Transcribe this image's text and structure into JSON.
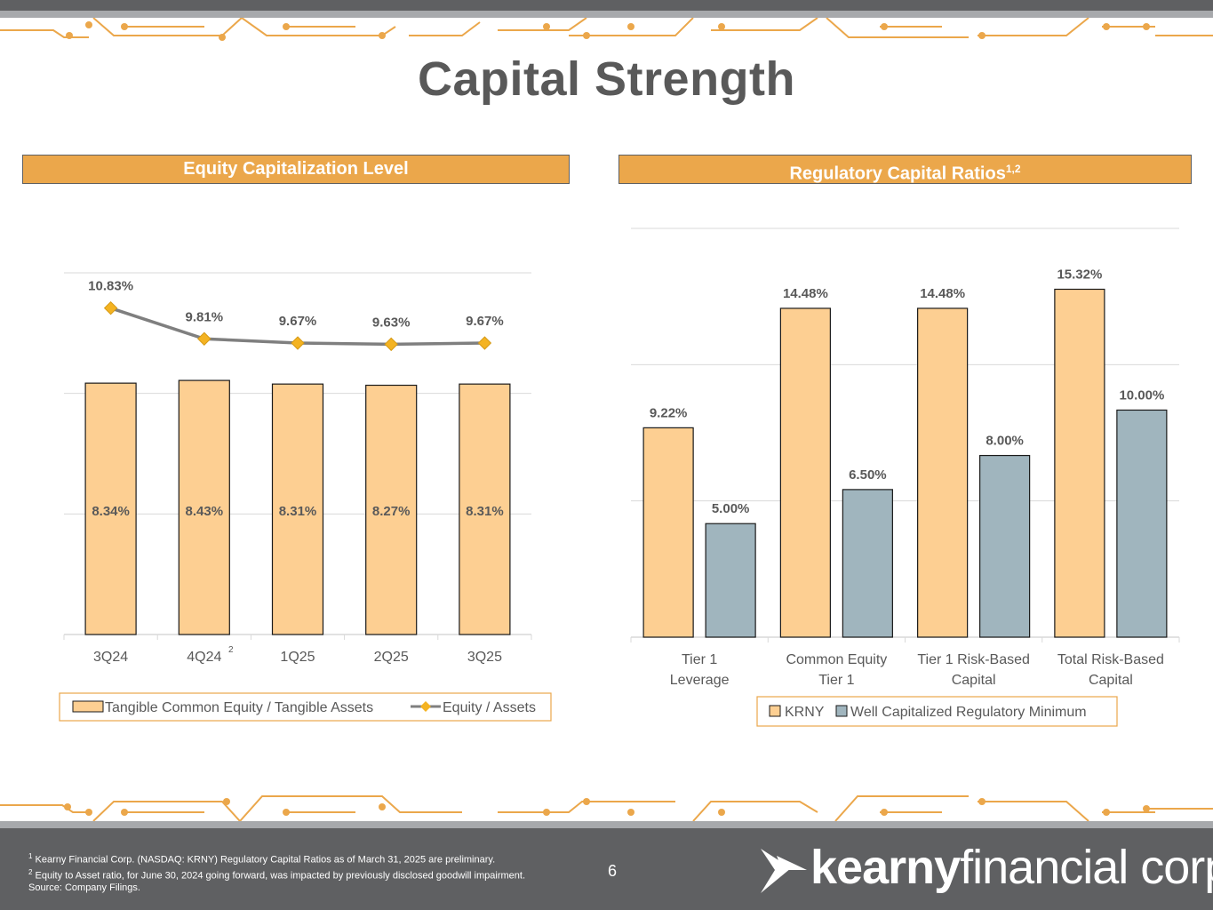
{
  "page": {
    "title": "Capital Strength",
    "page_number": "6"
  },
  "left_panel": {
    "header": "Equity Capitalization Level"
  },
  "right_panel": {
    "header": "Regulatory Capital Ratios",
    "header_sup": "1,2"
  },
  "footer": {
    "note1_mark": "1",
    "note1": "Kearny Financial Corp. (NASDAQ: KRNY) Regulatory Capital Ratios as of March 31, 2025 are preliminary.",
    "note2_mark": "2",
    "note2": "Equity to Asset ratio, for June 30, 2024 going forward, was impacted by previously disclosed goodwill impairment.",
    "source": "Source: Company Filings.",
    "logo_bold": "kearny",
    "logo_light": "financial corp."
  },
  "colors": {
    "accent": "#eba74b",
    "bar_peach": "#fdcf92",
    "bar_slate": "#a0b5be",
    "line_gray": "#7f7f7f",
    "marker_gold": "#f4b322",
    "dark_gray": "#5f6062"
  },
  "chart_data": [
    {
      "type": "bar",
      "title": "Equity Capitalization Level",
      "categories": [
        "3Q24",
        "4Q24",
        "1Q25",
        "2Q25",
        "3Q25"
      ],
      "category_sup": [
        "",
        "2",
        "",
        "",
        ""
      ],
      "series": [
        {
          "name": "Tangible Common Equity / Tangible Assets",
          "kind": "bar",
          "values": [
            8.34,
            8.43,
            8.31,
            8.27,
            8.31
          ],
          "labels": [
            "8.34%",
            "8.43%",
            "8.31%",
            "8.27%",
            "8.31%"
          ]
        },
        {
          "name": "Equity / Assets",
          "kind": "line",
          "values": [
            10.83,
            9.81,
            9.67,
            9.63,
            9.67
          ],
          "labels": [
            "10.83%",
            "9.81%",
            "9.67%",
            "9.63%",
            "9.67%"
          ]
        }
      ],
      "ylim": [
        0,
        12
      ],
      "grid": true,
      "legend": "bottom"
    },
    {
      "type": "bar",
      "title": "Regulatory Capital Ratios",
      "categories": [
        "Tier 1 Leverage",
        "Common Equity Tier 1",
        "Tier 1 Risk-Based Capital",
        "Total Risk-Based Capital"
      ],
      "category_lines": [
        [
          "Tier 1",
          "Leverage"
        ],
        [
          "Common Equity",
          "Tier 1"
        ],
        [
          "Tier 1 Risk-Based",
          "Capital"
        ],
        [
          "Total Risk-Based",
          "Capital"
        ]
      ],
      "series": [
        {
          "name": "KRNY",
          "values": [
            9.22,
            14.48,
            14.48,
            15.32
          ],
          "labels": [
            "9.22%",
            "14.48%",
            "14.48%",
            "15.32%"
          ]
        },
        {
          "name": "Well Capitalized Regulatory Minimum",
          "values": [
            5.0,
            6.5,
            8.0,
            10.0
          ],
          "labels": [
            "5.00%",
            "6.50%",
            "8.00%",
            "10.00%"
          ]
        }
      ],
      "ylim": [
        0,
        18
      ],
      "grid": true,
      "legend": "bottom"
    }
  ]
}
